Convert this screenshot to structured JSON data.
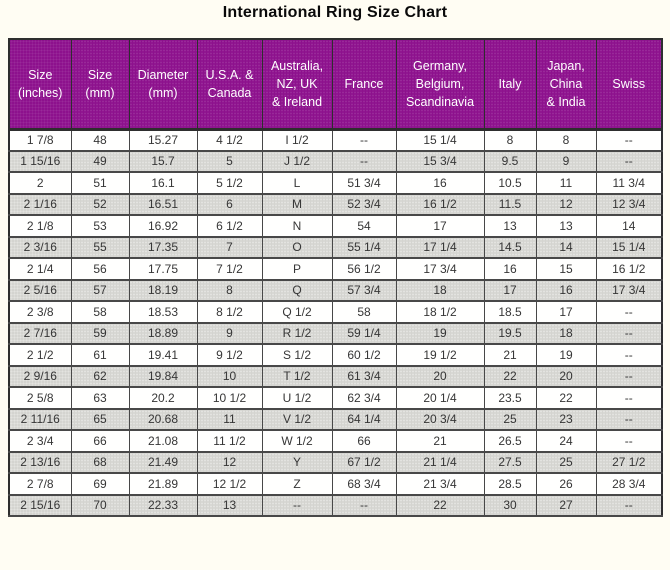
{
  "title": "International Ring Size Chart",
  "colors": {
    "header_bg": "#8d118d",
    "header_text": "#ffffff",
    "row_bg": "#fffffe",
    "row_alt_bg": "#d4d4d0",
    "border": "#2e2e2e",
    "page_bg": "#fffdf3"
  },
  "na_symbol": "--",
  "chart_data": {
    "type": "table",
    "title": "International Ring Size Chart",
    "columns": [
      "Size\n(inches)",
      "Size\n(mm)",
      "Diameter\n(mm)",
      "U.S.A. &\nCanada",
      "Australia,\nNZ, UK\n& Ireland",
      "France",
      "Germany,\nBelgium,\nScandinavia",
      "Italy",
      "Japan,\nChina\n& India",
      "Swiss"
    ],
    "rows": [
      [
        "1 7/8",
        "48",
        "15.27",
        "4 1/2",
        "I 1/2",
        "--",
        "15 1/4",
        "8",
        "8",
        "--"
      ],
      [
        "1 15/16",
        "49",
        "15.7",
        "5",
        "J 1/2",
        "--",
        "15 3/4",
        "9.5",
        "9",
        "--"
      ],
      [
        "2",
        "51",
        "16.1",
        "5 1/2",
        "L",
        "51 3/4",
        "16",
        "10.5",
        "11",
        "11 3/4"
      ],
      [
        "2 1/16",
        "52",
        "16.51",
        "6",
        "M",
        "52 3/4",
        "16 1/2",
        "11.5",
        "12",
        "12 3/4"
      ],
      [
        "2 1/8",
        "53",
        "16.92",
        "6 1/2",
        "N",
        "54",
        "17",
        "13",
        "13",
        "14"
      ],
      [
        "2 3/16",
        "55",
        "17.35",
        "7",
        "O",
        "55 1/4",
        "17 1/4",
        "14.5",
        "14",
        "15 1/4"
      ],
      [
        "2 1/4",
        "56",
        "17.75",
        "7 1/2",
        "P",
        "56 1/2",
        "17 3/4",
        "16",
        "15",
        "16 1/2"
      ],
      [
        "2 5/16",
        "57",
        "18.19",
        "8",
        "Q",
        "57 3/4",
        "18",
        "17",
        "16",
        "17 3/4"
      ],
      [
        "2 3/8",
        "58",
        "18.53",
        "8 1/2",
        "Q 1/2",
        "58",
        "18 1/2",
        "18.5",
        "17",
        "--"
      ],
      [
        "2 7/16",
        "59",
        "18.89",
        "9",
        "R 1/2",
        "59 1/4",
        "19",
        "19.5",
        "18",
        "--"
      ],
      [
        "2 1/2",
        "61",
        "19.41",
        "9 1/2",
        "S 1/2",
        "60 1/2",
        "19 1/2",
        "21",
        "19",
        "--"
      ],
      [
        "2 9/16",
        "62",
        "19.84",
        "10",
        "T 1/2",
        "61 3/4",
        "20",
        "22",
        "20",
        "--"
      ],
      [
        "2 5/8",
        "63",
        "20.2",
        "10 1/2",
        "U 1/2",
        "62 3/4",
        "20 1/4",
        "23.5",
        "22",
        "--"
      ],
      [
        "2 11/16",
        "65",
        "20.68",
        "11",
        "V 1/2",
        "64 1/4",
        "20 3/4",
        "25",
        "23",
        "--"
      ],
      [
        "2 3/4",
        "66",
        "21.08",
        "11 1/2",
        "W 1/2",
        "66",
        "21",
        "26.5",
        "24",
        "--"
      ],
      [
        "2 13/16",
        "68",
        "21.49",
        "12",
        "Y",
        "67 1/2",
        "21 1/4",
        "27.5",
        "25",
        "27 1/2"
      ],
      [
        "2 7/8",
        "69",
        "21.89",
        "12 1/2",
        "Z",
        "68 3/4",
        "21 3/4",
        "28.5",
        "26",
        "28 3/4"
      ],
      [
        "2 15/16",
        "70",
        "22.33",
        "13",
        "--",
        "--",
        "22",
        "30",
        "27",
        "--"
      ]
    ]
  }
}
